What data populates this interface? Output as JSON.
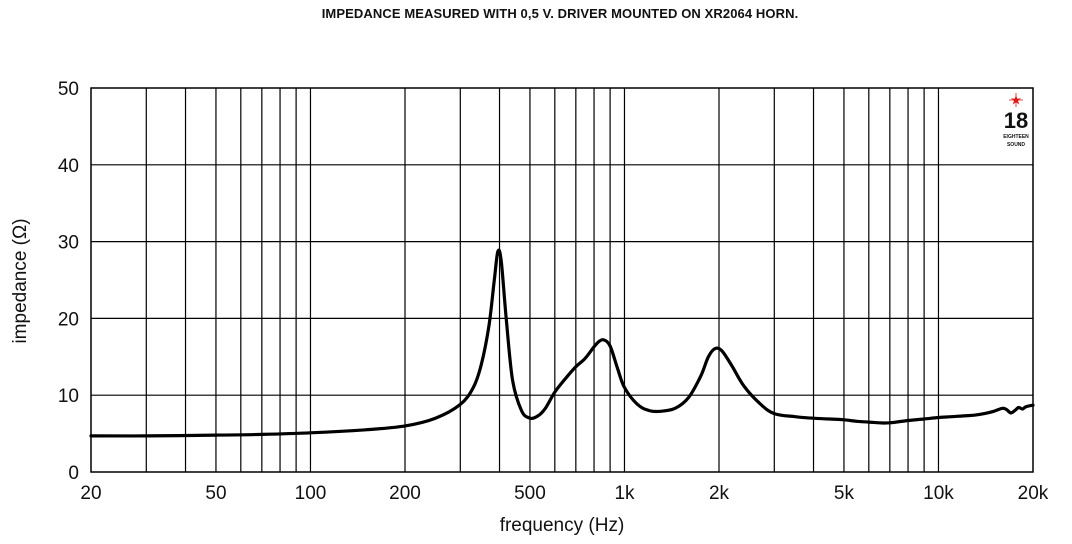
{
  "chart_data": {
    "type": "line",
    "title": "IMPEDANCE MEASURED WITH 0,5 V. DRIVER MOUNTED ON XR2064 HORN.",
    "xlabel": "frequency (Hz)",
    "ylabel": "impedance (Ω)",
    "x_scale": "log",
    "xlim": [
      20,
      20000
    ],
    "ylim": [
      0,
      50
    ],
    "grid": true,
    "x_ticks": [
      {
        "value": 20,
        "label": "20"
      },
      {
        "value": 50,
        "label": "50"
      },
      {
        "value": 100,
        "label": "100"
      },
      {
        "value": 200,
        "label": "200"
      },
      {
        "value": 500,
        "label": "500"
      },
      {
        "value": 1000,
        "label": "1k"
      },
      {
        "value": 2000,
        "label": "2k"
      },
      {
        "value": 5000,
        "label": "5k"
      },
      {
        "value": 10000,
        "label": "10k"
      },
      {
        "value": 20000,
        "label": "20k"
      }
    ],
    "x_minor_grid": [
      30,
      40,
      60,
      70,
      80,
      90,
      300,
      400,
      600,
      700,
      800,
      900,
      3000,
      4000,
      6000,
      7000,
      8000,
      9000
    ],
    "y_ticks": [
      {
        "value": 0,
        "label": "0"
      },
      {
        "value": 10,
        "label": "10"
      },
      {
        "value": 20,
        "label": "20"
      },
      {
        "value": 30,
        "label": "30"
      },
      {
        "value": 40,
        "label": "40"
      },
      {
        "value": 50,
        "label": "50"
      }
    ],
    "series": [
      {
        "x": [
          20,
          30,
          50,
          70,
          100,
          150,
          200,
          250,
          300,
          330,
          350,
          370,
          385,
          395,
          405,
          420,
          440,
          470,
          500,
          530,
          560,
          600,
          650,
          700,
          750,
          800,
          830,
          860,
          900,
          950,
          1000,
          1100,
          1200,
          1300,
          1450,
          1600,
          1750,
          1850,
          1950,
          2050,
          2200,
          2400,
          2700,
          3000,
          3500,
          4000,
          4500,
          5000,
          5500,
          6000,
          6500,
          7000,
          8000,
          9000,
          10000,
          11000,
          12000,
          13000,
          14000,
          15000,
          16000,
          16500,
          17000,
          17500,
          18000,
          18500,
          19000,
          20000
        ],
        "y": [
          4.7,
          4.7,
          4.8,
          4.9,
          5.1,
          5.5,
          6.0,
          7.0,
          8.8,
          11.0,
          14.0,
          19.0,
          25.0,
          28.7,
          27.5,
          20.0,
          12.0,
          8.0,
          7.0,
          7.3,
          8.3,
          10.4,
          12.2,
          13.7,
          14.8,
          16.3,
          17.0,
          17.2,
          16.4,
          13.5,
          11.0,
          8.8,
          8.0,
          7.9,
          8.3,
          9.7,
          12.5,
          15.0,
          16.1,
          15.7,
          13.8,
          11.2,
          8.9,
          7.6,
          7.2,
          7.0,
          6.9,
          6.8,
          6.6,
          6.5,
          6.4,
          6.4,
          6.7,
          6.9,
          7.1,
          7.2,
          7.3,
          7.4,
          7.6,
          7.9,
          8.3,
          8.1,
          7.7,
          8.0,
          8.4,
          8.2,
          8.5,
          8.7
        ]
      }
    ]
  },
  "logo": {
    "text": "18",
    "subtitle_1": "EIGHTEEN",
    "subtitle_2": "SOUND",
    "accent_color": "#e01818"
  }
}
